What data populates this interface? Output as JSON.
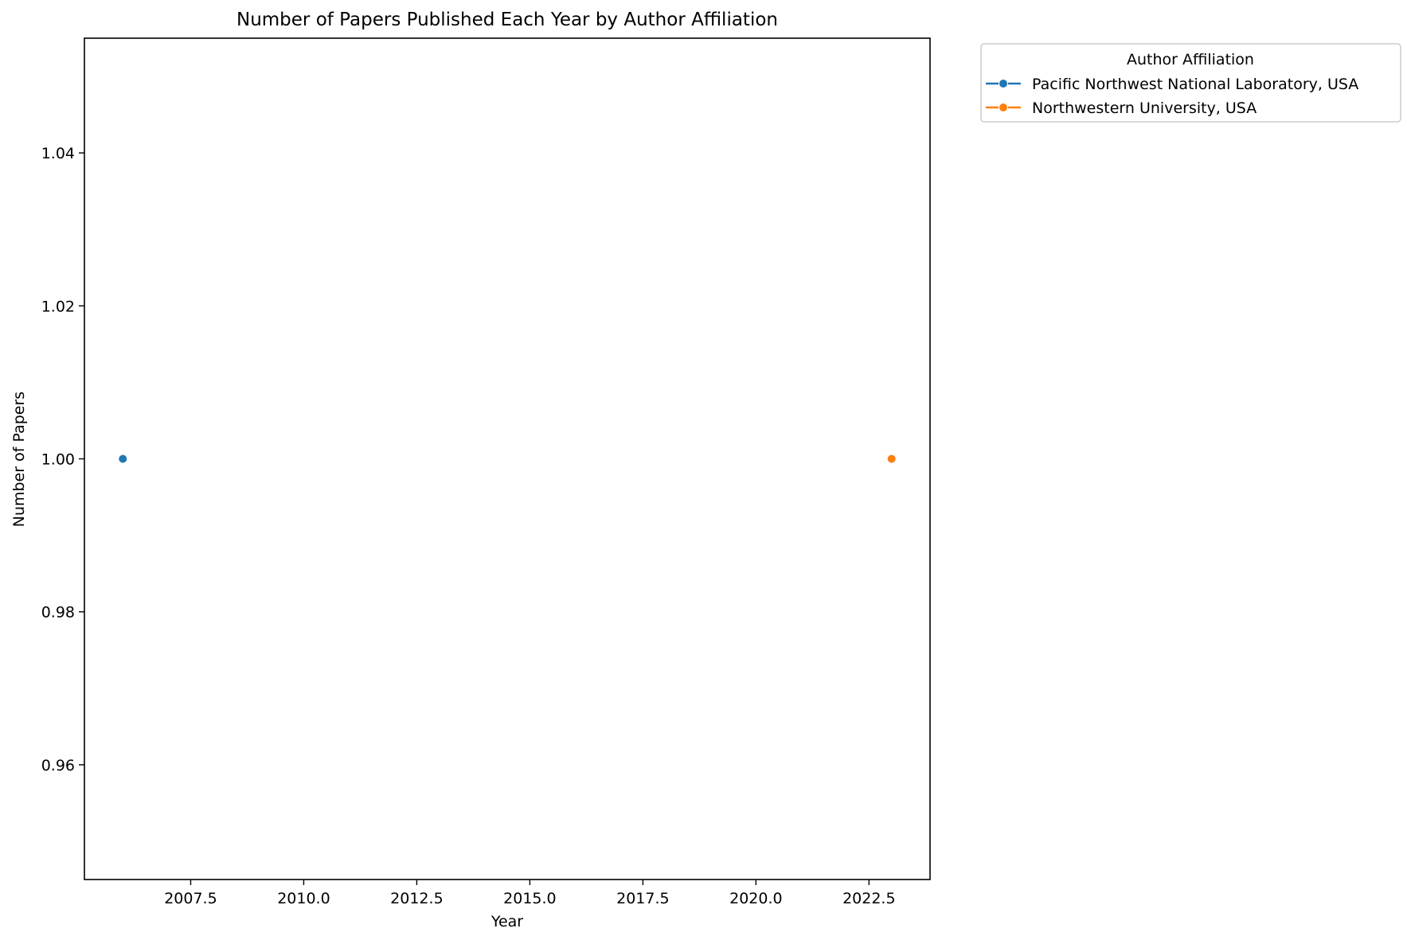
{
  "chart_data": {
    "type": "line",
    "title": "Number of Papers Published Each Year by Author Affiliation",
    "xlabel": "Year",
    "ylabel": "Number of Papers",
    "xlim": [
      2005.15,
      2023.85
    ],
    "ylim": [
      0.945,
      1.055
    ],
    "x_ticks": [
      2007.5,
      2010.0,
      2012.5,
      2015.0,
      2017.5,
      2020.0,
      2022.5
    ],
    "x_tick_labels": [
      "2007.5",
      "2010.0",
      "2012.5",
      "2015.0",
      "2017.5",
      "2020.0",
      "2022.5"
    ],
    "y_ticks": [
      0.96,
      0.98,
      1.0,
      1.02,
      1.04
    ],
    "y_tick_labels": [
      "0.96",
      "0.98",
      "1.00",
      "1.02",
      "1.04"
    ],
    "grid": false,
    "legend": {
      "title": "Author Affiliation",
      "placement": "outside-top-right"
    },
    "series": [
      {
        "name": "Pacific Northwest National Laboratory, USA",
        "color": "#1f77b4",
        "marker": "circle",
        "points": [
          {
            "x": 2006,
            "y": 1
          }
        ]
      },
      {
        "name": "Northwestern University, USA",
        "color": "#ff7f0e",
        "marker": "circle",
        "points": [
          {
            "x": 2023,
            "y": 1
          }
        ]
      }
    ]
  }
}
